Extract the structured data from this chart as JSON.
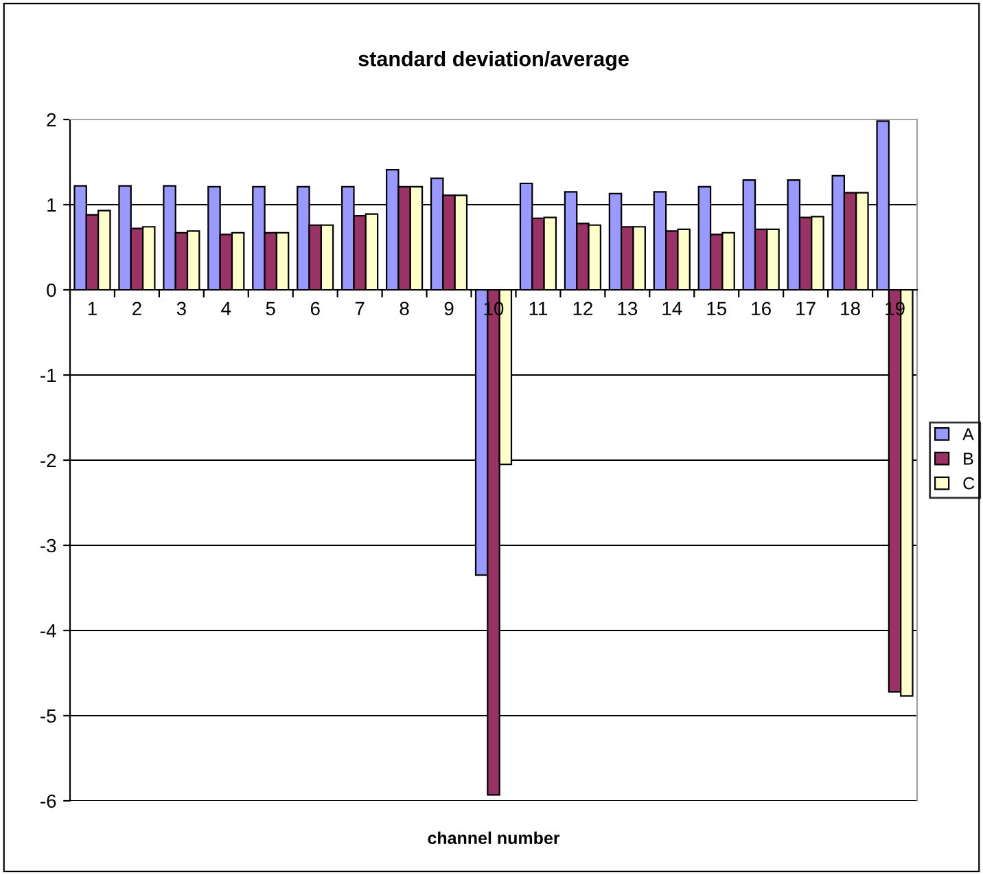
{
  "chart_data": {
    "type": "bar",
    "title": "standard deviation/average",
    "xlabel": "channel number",
    "categories": [
      "1",
      "2",
      "3",
      "4",
      "5",
      "6",
      "7",
      "8",
      "9",
      "10",
      "11",
      "12",
      "13",
      "14",
      "15",
      "16",
      "17",
      "18",
      "19"
    ],
    "series": [
      {
        "name": "A",
        "color": "#9999ff",
        "values": [
          1.22,
          1.22,
          1.22,
          1.21,
          1.21,
          1.21,
          1.21,
          1.41,
          1.31,
          -3.35,
          1.25,
          1.15,
          1.13,
          1.15,
          1.21,
          1.29,
          1.29,
          1.34,
          1.98
        ]
      },
      {
        "name": "B",
        "color": "#993366",
        "values": [
          0.88,
          0.72,
          0.67,
          0.65,
          0.67,
          0.76,
          0.87,
          1.21,
          1.11,
          -5.93,
          0.84,
          0.78,
          0.74,
          0.69,
          0.65,
          0.71,
          0.85,
          1.14,
          -4.72
        ]
      },
      {
        "name": "C",
        "color": "#ffffcc",
        "values": [
          0.93,
          0.74,
          0.69,
          0.67,
          0.67,
          0.76,
          0.89,
          1.21,
          1.11,
          -2.05,
          0.85,
          0.76,
          0.74,
          0.71,
          0.67,
          0.71,
          0.86,
          1.14,
          -4.77
        ]
      }
    ],
    "ylim": [
      -6,
      2
    ],
    "yticks": [
      -6,
      -5,
      -4,
      -3,
      -2,
      -1,
      0,
      1,
      2
    ],
    "grid": "y",
    "legend": "right"
  }
}
